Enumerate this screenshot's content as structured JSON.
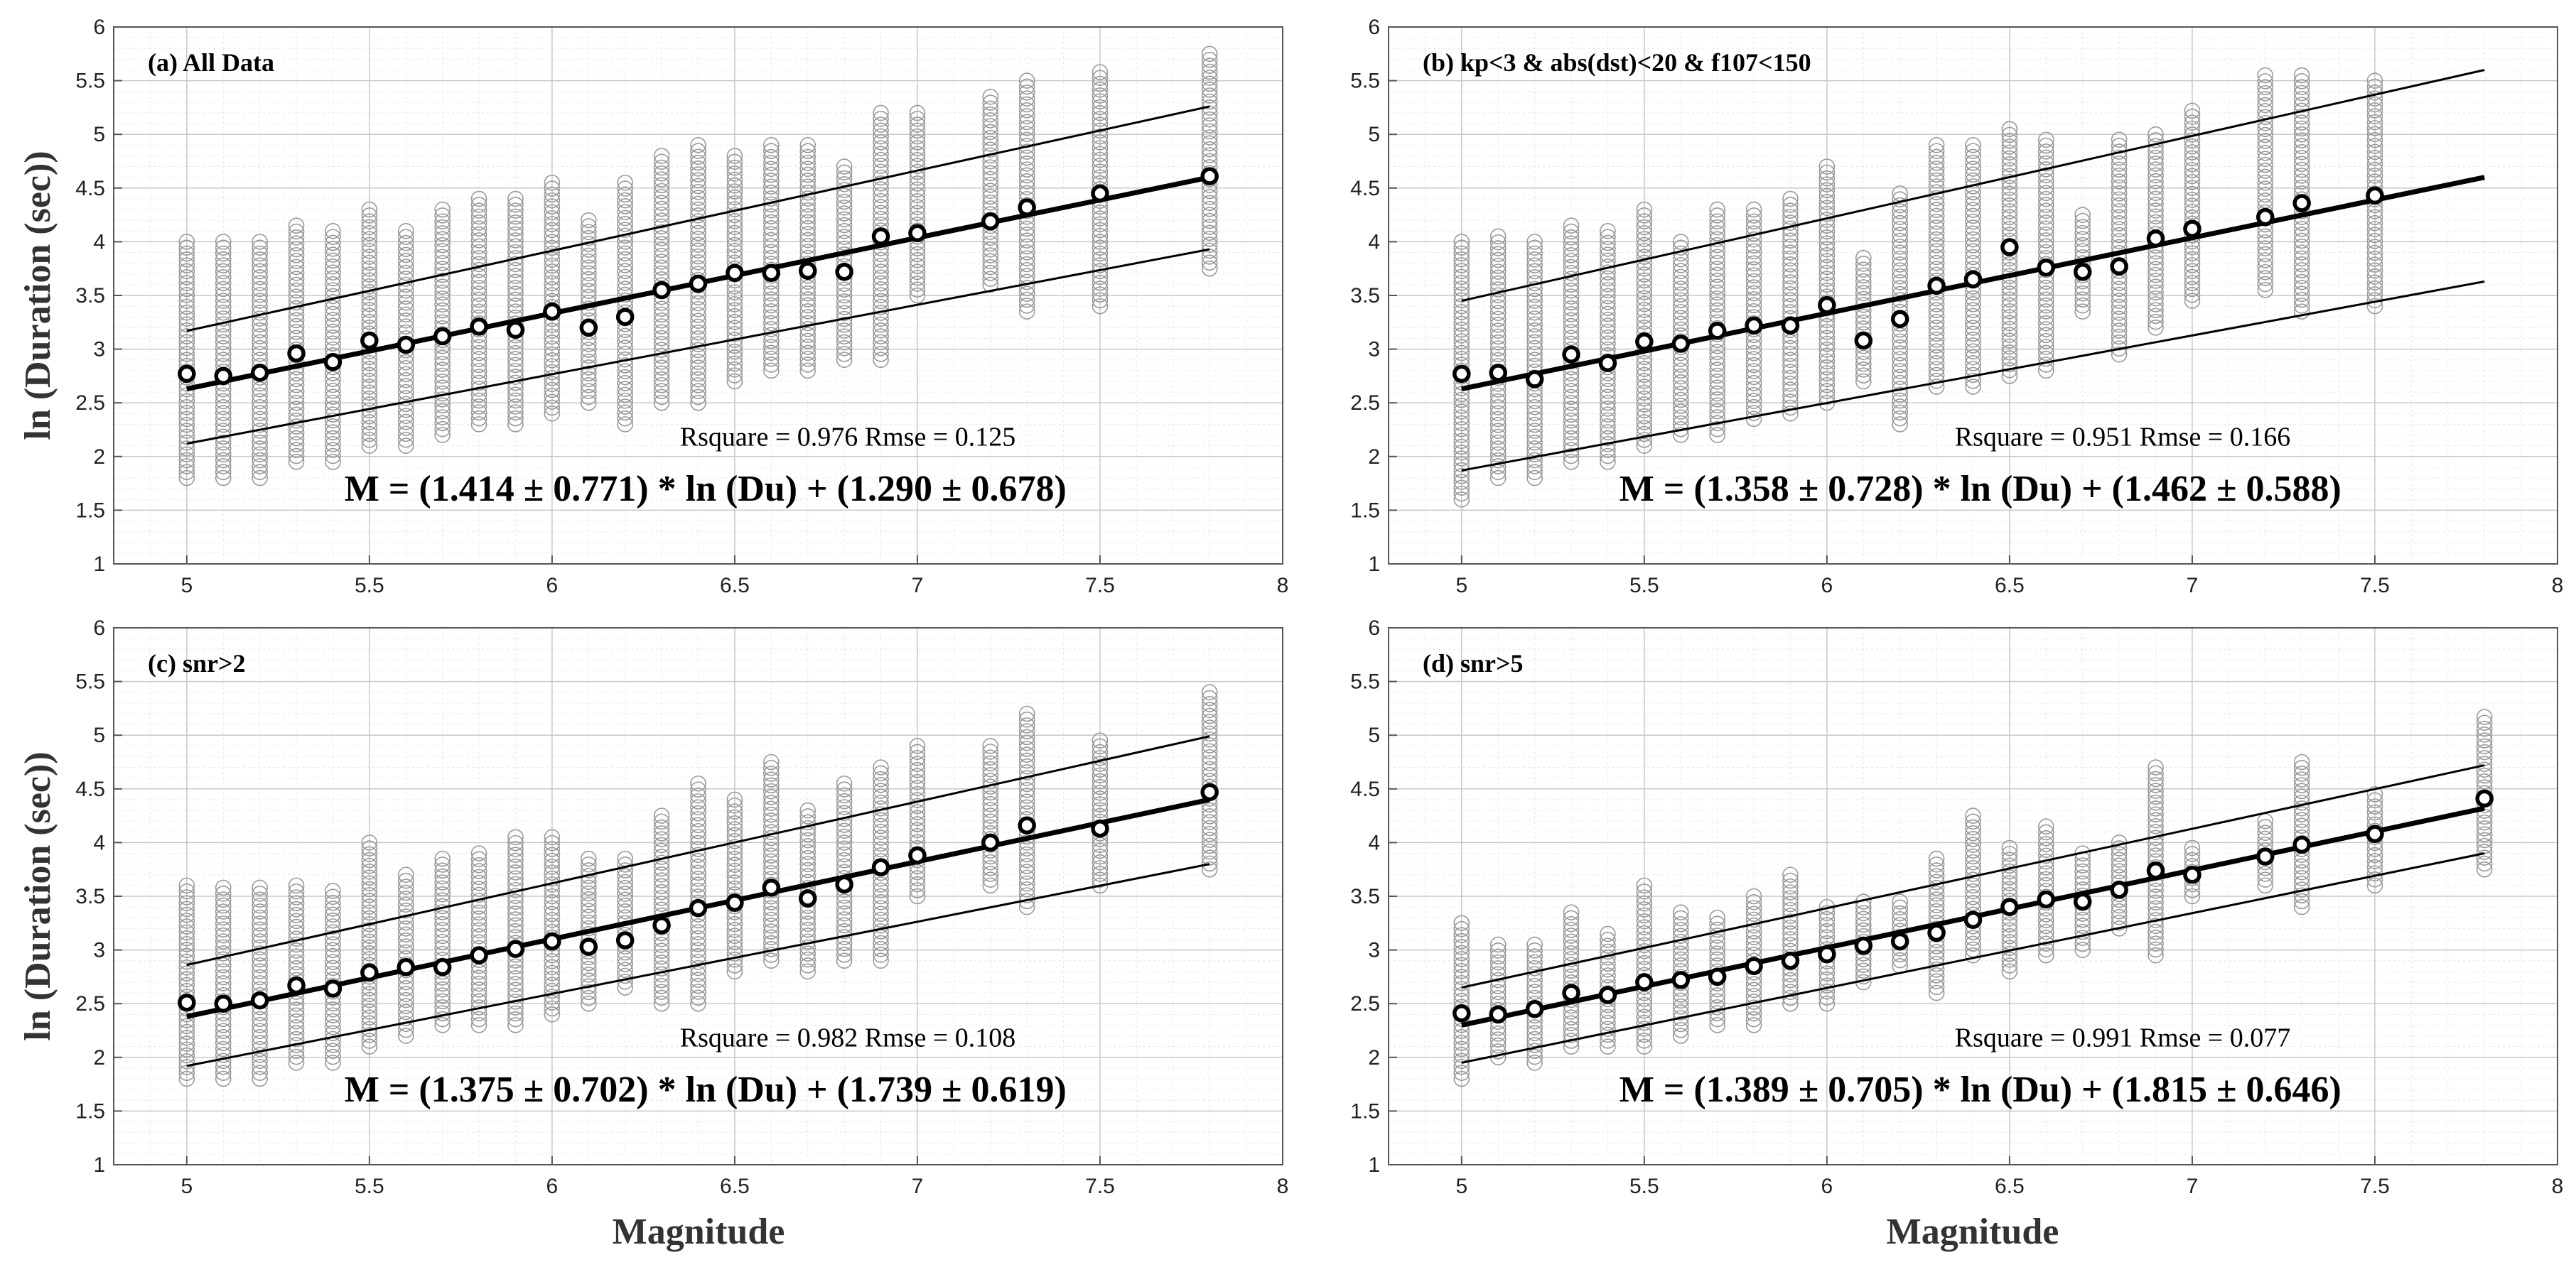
{
  "figure": {
    "ylabel": "ln (Duration (sec))",
    "xlabel": "Magnitude"
  },
  "colors": {
    "scatter": "#9a9a9a",
    "fit": "#000000",
    "mean": "#000000",
    "grid_major": "#c8c8c8",
    "grid_minor": "#e6e6e6",
    "axis": "#555555"
  },
  "chart_data": [
    {
      "type": "scatter",
      "panel": "a",
      "title": "(a)   All Data",
      "xlabel": "",
      "ylabel": "ln (Duration (sec))",
      "xlim": [
        4.8,
        8
      ],
      "ylim": [
        1,
        6
      ],
      "xticks": [
        "5",
        "5.5",
        "6",
        "6.5",
        "7",
        "7.5",
        "8"
      ],
      "yticks": [
        "1",
        "1.5",
        "2",
        "2.5",
        "3",
        "3.5",
        "4",
        "4.5",
        "5",
        "5.5",
        "6"
      ],
      "stats_text": "Rsquare = 0.976  Rmse  = 0.125",
      "equation": "M = (1.414 ± 0.771) * ln (Du) + (1.290 ± 0.678)",
      "fit_line": {
        "x": [
          5,
          7.8
        ],
        "y": [
          2.63,
          4.6
        ]
      },
      "upper_bound": {
        "x": [
          5,
          7.8
        ],
        "y": [
          3.17,
          5.26
        ]
      },
      "lower_bound": {
        "x": [
          5,
          7.8
        ],
        "y": [
          2.12,
          3.93
        ]
      },
      "series": [
        {
          "name": "observations",
          "x": [
            5,
            5.1,
            5.2,
            5.3,
            5.4,
            5.5,
            5.6,
            5.7,
            5.8,
            5.9,
            6,
            6.1,
            6.2,
            6.3,
            6.4,
            6.5,
            6.6,
            6.7,
            6.8,
            6.9,
            7,
            7.2,
            7.3,
            7.5,
            7.8
          ],
          "ymin": [
            1.8,
            1.8,
            1.8,
            1.95,
            1.95,
            2.1,
            2.1,
            2.2,
            2.3,
            2.3,
            2.4,
            2.5,
            2.3,
            2.5,
            2.5,
            2.7,
            2.8,
            2.8,
            2.9,
            2.9,
            3.5,
            3.6,
            3.35,
            3.4,
            3.75
          ],
          "ymax": [
            4.0,
            4.0,
            4.0,
            4.15,
            4.1,
            4.3,
            4.1,
            4.3,
            4.4,
            4.4,
            4.55,
            4.2,
            4.55,
            4.8,
            4.9,
            4.8,
            4.9,
            4.9,
            4.7,
            5.2,
            5.2,
            5.35,
            5.5,
            5.58,
            5.75
          ]
        },
        {
          "name": "mean",
          "x": [
            5,
            5.1,
            5.2,
            5.3,
            5.4,
            5.5,
            5.6,
            5.7,
            5.8,
            5.9,
            6,
            6.1,
            6.2,
            6.3,
            6.4,
            6.5,
            6.6,
            6.7,
            6.8,
            6.9,
            7,
            7.2,
            7.3,
            7.5,
            7.8
          ],
          "y": [
            2.77,
            2.75,
            2.78,
            2.96,
            2.88,
            3.08,
            3.04,
            3.12,
            3.21,
            3.18,
            3.35,
            3.2,
            3.3,
            3.55,
            3.61,
            3.71,
            3.71,
            3.73,
            3.72,
            4.05,
            4.08,
            4.19,
            4.32,
            4.45,
            4.61
          ]
        }
      ]
    },
    {
      "type": "scatter",
      "panel": "b",
      "title": "(b)   kp<3 & abs(dst)<20 & f107<150",
      "xlabel": "",
      "ylabel": "",
      "xlim": [
        4.8,
        8
      ],
      "ylim": [
        1,
        6
      ],
      "xticks": [
        "5",
        "5.5",
        "6",
        "6.5",
        "7",
        "7.5",
        "8"
      ],
      "yticks": [
        "1",
        "1.5",
        "2",
        "2.5",
        "3",
        "3.5",
        "4",
        "4.5",
        "5",
        "5.5",
        "6"
      ],
      "stats_text": "Rsquare = 0.951  Rmse  = 0.166",
      "equation": "M = (1.358 ± 0.728) * ln (Du) + (1.462 ± 0.588)",
      "fit_line": {
        "x": [
          5,
          7.8
        ],
        "y": [
          2.63,
          4.6
        ]
      },
      "upper_bound": {
        "x": [
          5,
          7.8
        ],
        "y": [
          3.45,
          5.6
        ]
      },
      "lower_bound": {
        "x": [
          5,
          7.8
        ],
        "y": [
          1.87,
          3.63
        ]
      },
      "series": [
        {
          "name": "observations",
          "x": [
            5,
            5.1,
            5.2,
            5.3,
            5.4,
            5.5,
            5.6,
            5.7,
            5.8,
            5.9,
            6,
            6.1,
            6.2,
            6.3,
            6.4,
            6.5,
            6.6,
            6.7,
            6.8,
            6.9,
            7,
            7.2,
            7.3,
            7.5
          ],
          "ymin": [
            1.6,
            1.8,
            1.8,
            1.95,
            1.95,
            2.1,
            2.2,
            2.2,
            2.35,
            2.4,
            2.5,
            2.7,
            2.3,
            2.65,
            2.65,
            2.75,
            2.8,
            3.35,
            2.95,
            3.2,
            3.45,
            3.55,
            3.35,
            3.4
          ],
          "ymax": [
            4.0,
            4.05,
            4.0,
            4.15,
            4.1,
            4.3,
            4.0,
            4.3,
            4.3,
            4.4,
            4.7,
            3.85,
            4.45,
            4.9,
            4.9,
            5.05,
            4.95,
            4.25,
            4.95,
            5.0,
            5.22,
            5.55,
            5.55,
            5.5
          ]
        },
        {
          "name": "mean",
          "x": [
            5,
            5.1,
            5.2,
            5.3,
            5.4,
            5.5,
            5.6,
            5.7,
            5.8,
            5.9,
            6,
            6.1,
            6.2,
            6.3,
            6.4,
            6.5,
            6.6,
            6.7,
            6.8,
            6.9,
            7,
            7.2,
            7.3,
            7.5
          ],
          "y": [
            2.77,
            2.78,
            2.72,
            2.95,
            2.87,
            3.07,
            3.05,
            3.17,
            3.22,
            3.22,
            3.41,
            3.08,
            3.28,
            3.59,
            3.65,
            3.95,
            3.76,
            3.72,
            3.77,
            4.03,
            4.12,
            4.23,
            4.36,
            4.43
          ]
        }
      ]
    },
    {
      "type": "scatter",
      "panel": "c",
      "title": "(c)   snr>2",
      "xlabel": "Magnitude",
      "ylabel": "ln (Duration (sec))",
      "xlim": [
        4.8,
        8
      ],
      "ylim": [
        1,
        6
      ],
      "xticks": [
        "5",
        "5.5",
        "6",
        "6.5",
        "7",
        "7.5",
        "8"
      ],
      "yticks": [
        "1",
        "1.5",
        "2",
        "2.5",
        "3",
        "3.5",
        "4",
        "4.5",
        "5",
        "5.5",
        "6"
      ],
      "stats_text": "Rsquare = 0.982  Rmse  = 0.108",
      "equation": "M = (1.375 ± 0.702) * ln (Du) + (1.739 ± 0.619)",
      "fit_line": {
        "x": [
          5,
          7.8
        ],
        "y": [
          2.38,
          4.4
        ]
      },
      "upper_bound": {
        "x": [
          5,
          7.8
        ],
        "y": [
          2.86,
          4.99
        ]
      },
      "lower_bound": {
        "x": [
          5,
          7.8
        ],
        "y": [
          1.92,
          3.8
        ]
      },
      "series": [
        {
          "name": "observations",
          "x": [
            5,
            5.1,
            5.2,
            5.3,
            5.4,
            5.5,
            5.6,
            5.7,
            5.8,
            5.9,
            6,
            6.1,
            6.2,
            6.3,
            6.4,
            6.5,
            6.6,
            6.7,
            6.8,
            6.9,
            7,
            7.2,
            7.3,
            7.5,
            7.8
          ],
          "ymin": [
            1.8,
            1.8,
            1.8,
            1.95,
            1.95,
            2.1,
            2.2,
            2.3,
            2.3,
            2.3,
            2.4,
            2.5,
            2.65,
            2.5,
            2.5,
            2.8,
            2.9,
            2.8,
            2.9,
            2.9,
            3.5,
            3.6,
            3.4,
            3.6,
            3.75
          ],
          "ymax": [
            3.6,
            3.58,
            3.58,
            3.6,
            3.55,
            4.0,
            3.7,
            3.85,
            3.9,
            4.05,
            4.05,
            3.85,
            3.85,
            4.25,
            4.55,
            4.4,
            4.75,
            4.3,
            4.55,
            4.7,
            4.9,
            4.9,
            5.2,
            4.95,
            5.4
          ]
        },
        {
          "name": "mean",
          "x": [
            5,
            5.1,
            5.2,
            5.3,
            5.4,
            5.5,
            5.6,
            5.7,
            5.8,
            5.9,
            6,
            6.1,
            6.2,
            6.3,
            6.4,
            6.5,
            6.6,
            6.7,
            6.8,
            6.9,
            7,
            7.2,
            7.3,
            7.5,
            7.8
          ],
          "y": [
            2.51,
            2.5,
            2.53,
            2.67,
            2.64,
            2.79,
            2.84,
            2.84,
            2.95,
            3.01,
            3.08,
            3.03,
            3.09,
            3.23,
            3.39,
            3.44,
            3.58,
            3.48,
            3.61,
            3.77,
            3.88,
            4.0,
            4.16,
            4.13,
            4.47
          ]
        }
      ]
    },
    {
      "type": "scatter",
      "panel": "d",
      "title": "(d)   snr>5",
      "xlabel": "Magnitude",
      "ylabel": "",
      "xlim": [
        4.8,
        8
      ],
      "ylim": [
        1,
        6
      ],
      "xticks": [
        "5",
        "5.5",
        "6",
        "6.5",
        "7",
        "7.5",
        "8"
      ],
      "yticks": [
        "1",
        "1.5",
        "2",
        "2.5",
        "3",
        "3.5",
        "4",
        "4.5",
        "5",
        "5.5",
        "6"
      ],
      "stats_text": "Rsquare = 0.991  Rmse  = 0.077",
      "equation": "M = (1.389 ± 0.705) * ln (Du) + (1.815 ± 0.646)",
      "fit_line": {
        "x": [
          5,
          7.8
        ],
        "y": [
          2.3,
          4.32
        ]
      },
      "upper_bound": {
        "x": [
          5,
          7.8
        ],
        "y": [
          2.65,
          4.72
        ]
      },
      "lower_bound": {
        "x": [
          5,
          7.8
        ],
        "y": [
          1.95,
          3.9
        ]
      },
      "series": [
        {
          "name": "observations",
          "x": [
            5,
            5.1,
            5.2,
            5.3,
            5.4,
            5.5,
            5.6,
            5.7,
            5.8,
            5.9,
            6,
            6.1,
            6.2,
            6.3,
            6.4,
            6.5,
            6.6,
            6.7,
            6.8,
            6.9,
            7,
            7.2,
            7.3,
            7.5,
            7.8
          ],
          "ymin": [
            1.8,
            2.0,
            1.95,
            2.1,
            2.1,
            2.1,
            2.2,
            2.3,
            2.3,
            2.5,
            2.5,
            2.7,
            2.85,
            2.6,
            2.95,
            2.8,
            2.95,
            3.0,
            3.2,
            2.95,
            3.5,
            3.6,
            3.4,
            3.6,
            3.75
          ],
          "ymax": [
            3.25,
            3.05,
            3.05,
            3.35,
            3.15,
            3.6,
            3.35,
            3.3,
            3.5,
            3.7,
            3.4,
            3.45,
            3.45,
            3.85,
            4.25,
            3.95,
            4.15,
            3.9,
            4.0,
            4.7,
            3.95,
            4.2,
            4.75,
            4.45,
            5.17
          ]
        },
        {
          "name": "mean",
          "x": [
            5,
            5.1,
            5.2,
            5.3,
            5.4,
            5.5,
            5.6,
            5.7,
            5.8,
            5.9,
            6,
            6.1,
            6.2,
            6.3,
            6.4,
            6.5,
            6.6,
            6.7,
            6.8,
            6.9,
            7,
            7.2,
            7.3,
            7.5,
            7.8
          ],
          "y": [
            2.41,
            2.4,
            2.45,
            2.6,
            2.58,
            2.7,
            2.72,
            2.75,
            2.85,
            2.9,
            2.96,
            3.04,
            3.08,
            3.16,
            3.28,
            3.4,
            3.47,
            3.45,
            3.56,
            3.74,
            3.7,
            3.87,
            3.98,
            4.08,
            4.41
          ]
        }
      ]
    }
  ]
}
